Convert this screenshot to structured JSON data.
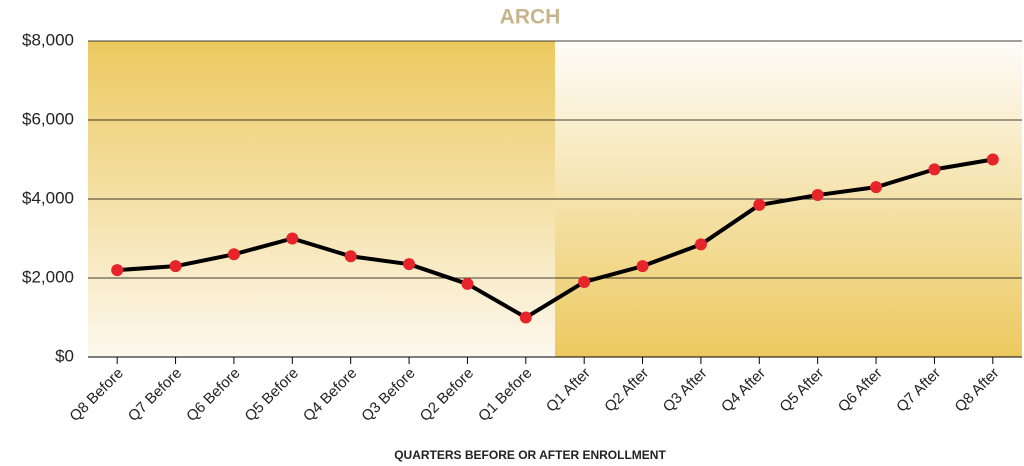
{
  "chart_data": {
    "type": "line",
    "title": "ARCH",
    "x_label": "QUARTERS BEFORE OR AFTER ENROLLMENT",
    "categories": [
      "Q8 Before",
      "Q7 Before",
      "Q6 Before",
      "Q5 Before",
      "Q4 Before",
      "Q3 Before",
      "Q2 Before",
      "Q1 Before",
      "Q1 After",
      "Q2 After",
      "Q3 After",
      "Q4 After",
      "Q5 After",
      "Q6 After",
      "Q7 After",
      "Q8 After"
    ],
    "values": [
      2200,
      2300,
      2600,
      3000,
      2550,
      2350,
      1850,
      1000,
      1900,
      2300,
      2850,
      3850,
      4100,
      4300,
      4750,
      5000
    ],
    "color": "#000000",
    "marker_color": "#e8242b",
    "ylim": [
      0,
      8000
    ],
    "yticks": [
      {
        "value": 0,
        "label": "$0"
      },
      {
        "value": 2000,
        "label": "$2,000"
      },
      {
        "value": 4000,
        "label": "$4,000"
      },
      {
        "value": 6000,
        "label": "$6,000"
      },
      {
        "value": 8000,
        "label": "$8,000"
      }
    ],
    "grid": true
  }
}
